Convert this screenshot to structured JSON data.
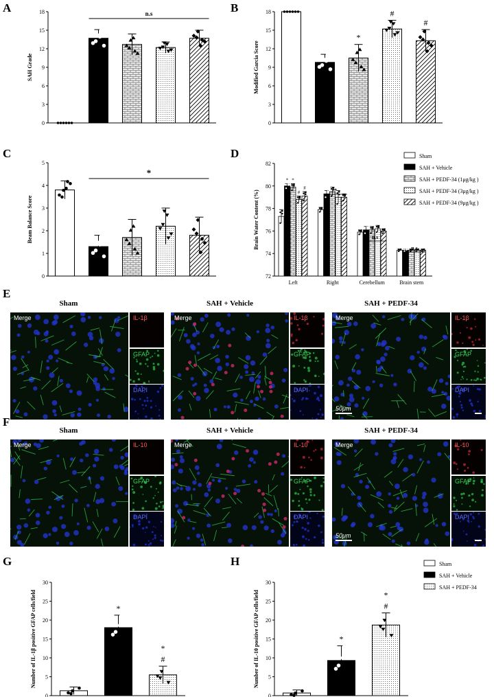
{
  "panels": {
    "A": "A",
    "B": "B",
    "C": "C",
    "D": "D",
    "E": "E",
    "F": "F",
    "G": "G",
    "H": "H"
  },
  "colors": {
    "sham": "#ffffff",
    "vehicle": "#000000",
    "pedf1": "#d9d9d9",
    "pedf3": "#f2f2f2",
    "pedf9": "#ffffff",
    "merge_bg": "#061208",
    "ilb_bg": "#050101",
    "gfap_bg": "#041206",
    "dapi_bg": "#02041a",
    "label_red": "#ff5a5a",
    "label_green": "#39d35a",
    "label_blue": "#5a6dff"
  },
  "chart_data": [
    {
      "id": "A",
      "type": "bar",
      "categories": [
        "Sham",
        "SAH + Vehicle",
        "SAH + PEDF-34 (1μg/kg )",
        "SAH + PEDF-34 (3μg/kg )",
        "SAH + PEDF-34 (9μg/kg )"
      ],
      "values": [
        0,
        13.7,
        12.7,
        12.2,
        13.7
      ],
      "errors": [
        0,
        1.4,
        1.7,
        0.9,
        1.3
      ],
      "ylabel": "SAH Grade",
      "ylim": [
        0,
        18
      ],
      "yticks": [
        0,
        3,
        6,
        9,
        12,
        15,
        18
      ],
      "annotations": [
        {
          "text": "n.s",
          "from": 1,
          "to": 4
        }
      ]
    },
    {
      "id": "B",
      "type": "bar",
      "categories": [
        "Sham",
        "SAH + Vehicle",
        "SAH + PEDF-34 (1μg/kg )",
        "SAH + PEDF-34 (3μg/kg )",
        "SAH + PEDF-34 (9μg/kg )"
      ],
      "values": [
        18,
        9.8,
        10.5,
        15.2,
        13.3
      ],
      "errors": [
        0,
        1.3,
        2.2,
        1.4,
        1.8
      ],
      "ylabel": "Modified Garcia Score",
      "ylim": [
        0,
        18
      ],
      "yticks": [
        0,
        3,
        6,
        9,
        12,
        15,
        18
      ],
      "marks": [
        "",
        "",
        "*",
        "#",
        "#"
      ]
    },
    {
      "id": "C",
      "type": "bar",
      "categories": [
        "Sham",
        "SAH + Vehicle",
        "SAH + PEDF-34 (1μg/kg )",
        "SAH + PEDF-34 (3μg/kg )",
        "SAH + PEDF-34 (9μg/kg )"
      ],
      "values": [
        3.8,
        1.3,
        1.7,
        2.2,
        1.8
      ],
      "errors": [
        0.4,
        0.5,
        0.8,
        0.8,
        0.8
      ],
      "ylabel": "Beam Balance Score",
      "ylim": [
        0,
        5
      ],
      "yticks": [
        0,
        1,
        2,
        3,
        4,
        5
      ],
      "annotations": [
        {
          "text": "*",
          "from": 1,
          "to": 4
        }
      ]
    },
    {
      "id": "D",
      "type": "bar",
      "categories": [
        "Left\nHemisphere",
        "Right\nHemisphere",
        "Cerebellum",
        "Brain stem"
      ],
      "series": [
        {
          "name": "Sham",
          "values": [
            77.3,
            77.9,
            75.9,
            74.3
          ],
          "errors": [
            0.6,
            0.2,
            0.2,
            0.1
          ]
        },
        {
          "name": "SAH + Vehicle",
          "values": [
            80.0,
            79.3,
            76.1,
            74.3
          ],
          "errors": [
            0.2,
            0.3,
            0.3,
            0.1
          ]
        },
        {
          "name": "SAH + PEDF-34 (1μg/kg )",
          "values": [
            79.9,
            79.5,
            76.1,
            74.3
          ],
          "errors": [
            0.3,
            0.4,
            0.3,
            0.1
          ]
        },
        {
          "name": "SAH + PEDF-34 (3μg/kg )",
          "values": [
            78.8,
            79.0,
            76.2,
            74.3
          ],
          "errors": [
            0.3,
            0.6,
            0.3,
            0.1
          ]
        },
        {
          "name": "SAH + PEDF-34 (9μg/kg )",
          "values": [
            79.1,
            79.0,
            76.0,
            74.3
          ],
          "errors": [
            0.4,
            0.3,
            0.2,
            0.1
          ]
        }
      ],
      "ylabel": "Brain Water Content (%)",
      "ylim": [
        72,
        82
      ],
      "yticks": [
        72,
        74,
        76,
        78,
        80,
        82
      ],
      "left_marks": [
        "*",
        "*",
        "#",
        "#"
      ],
      "annotations": [
        {
          "text": "*",
          "group": 1
        },
        {
          "text": "n.s",
          "group": 2
        },
        {
          "text": "n.s",
          "group": 3
        }
      ]
    },
    {
      "id": "G",
      "type": "bar",
      "categories": [
        "Sham",
        "SAH + Vehicle",
        "SAH + PEDF-34"
      ],
      "values": [
        1.3,
        18.0,
        5.5
      ],
      "errors": [
        1.0,
        3.3,
        2.3
      ],
      "ylabel": "Number of IL-1β positive GFAP cells/field",
      "ylim": [
        0,
        30
      ],
      "yticks": [
        0,
        5,
        10,
        15,
        20,
        25,
        30
      ],
      "marks": [
        "",
        "*",
        "*\n#"
      ]
    },
    {
      "id": "H",
      "type": "bar",
      "categories": [
        "Sham",
        "SAH + Vehicle",
        "SAH + PEDF-34"
      ],
      "values": [
        0.7,
        9.3,
        18.7
      ],
      "errors": [
        0.8,
        3.9,
        3.2
      ],
      "ylabel": "Number of IL-10 positive GFAP cells/field",
      "ylim": [
        0,
        30
      ],
      "yticks": [
        0,
        5,
        10,
        15,
        20,
        25,
        30
      ],
      "marks": [
        "",
        "*",
        "*\n#"
      ]
    }
  ],
  "legend_d": {
    "items": [
      "Sham",
      "SAH + Vehicle",
      "SAH + PEDF-34 (1μg/kg )",
      "SAH + PEDF-34 (3μg/kg )",
      "SAH + PEDF-34 (9μg/kg )"
    ]
  },
  "legend_gh": {
    "items": [
      "Sham",
      "SAH + Vehicle",
      "SAH + PEDF-34"
    ]
  },
  "micro": {
    "E": {
      "columns": [
        "Sham",
        "SAH + Vehicle",
        "SAH + PEDF-34"
      ],
      "merge_label": "Merge",
      "channel_labels": [
        "IL-1β",
        "GFAP",
        "DAPI"
      ],
      "scale_text": "50μm"
    },
    "F": {
      "columns": [
        "Sham",
        "SAH + Vehicle",
        "SAH + PEDF-34"
      ],
      "merge_label": "Merge",
      "channel_labels": [
        "IL-10",
        "GFAP",
        "DAPI"
      ],
      "scale_text": "50μm"
    }
  }
}
